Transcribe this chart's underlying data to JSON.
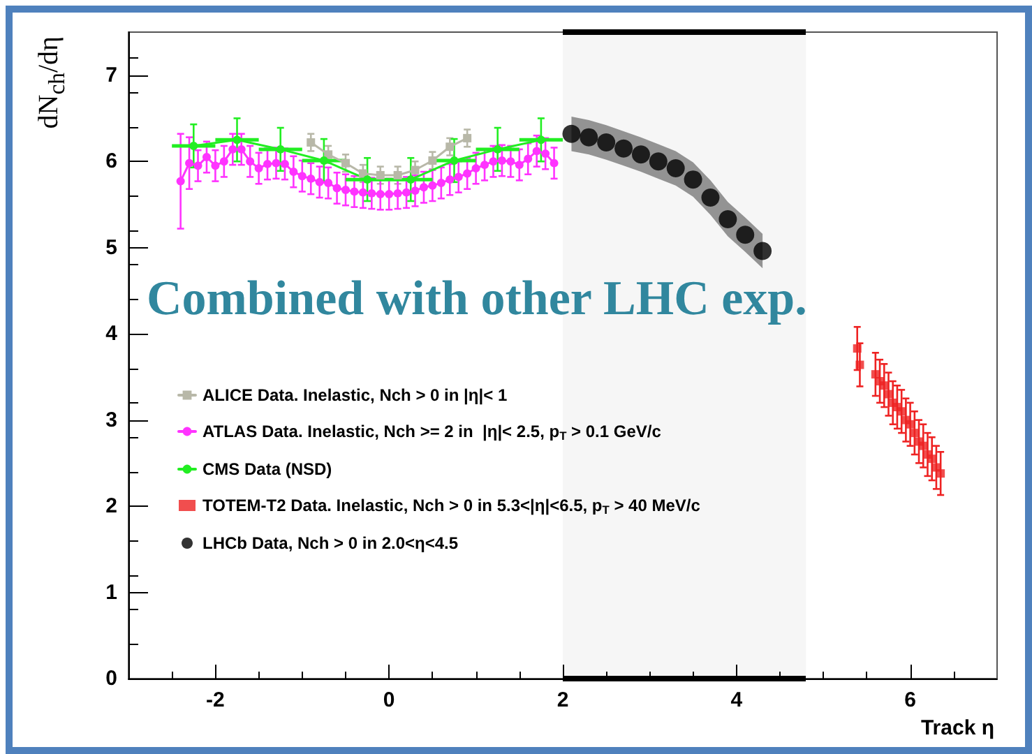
{
  "chart_data": {
    "type": "scatter",
    "xlabel": "Track η",
    "ylabel": "dN$_{ch}$/dη",
    "annotations": [
      "Combined with other LHC exp."
    ],
    "xlim": [
      -3,
      7
    ],
    "xticks": [
      -2,
      0,
      2,
      4,
      6
    ],
    "ylim": [
      0,
      7.5
    ],
    "yticks": [
      0,
      1,
      2,
      3,
      4,
      5,
      6,
      7
    ],
    "grid": false,
    "legend": "left",
    "bands": [
      {
        "axis": "x",
        "from": 2,
        "to": 4.8,
        "color": "#000000"
      }
    ],
    "series": [
      {
        "name": "ALICE Data. Inelastic, Nch > 0 in |η|< 1",
        "type": "line",
        "color": "#b8b8a8",
        "marker": "square",
        "x": [
          -0.9,
          -0.7,
          -0.5,
          -0.3,
          -0.1,
          0.1,
          0.3,
          0.5,
          0.7,
          0.9
        ],
        "values": [
          6.22,
          6.08,
          5.98,
          5.86,
          5.84,
          5.84,
          5.9,
          6.01,
          6.17,
          6.27
        ],
        "errors": [
          0.1,
          0.1,
          0.1,
          0.1,
          0.1,
          0.1,
          0.1,
          0.1,
          0.1,
          0.1
        ]
      },
      {
        "name": "ATLAS Data. Inelastic, Nch >= 2 in  |η|< 2.5, p$_{T}$ > 0.1 GeV/c",
        "type": "line",
        "color": "#ff33ff",
        "marker": "circle",
        "x": [
          -2.4,
          -2.3,
          -2.2,
          -2.1,
          -2.0,
          -1.9,
          -1.8,
          -1.7,
          -1.6,
          -1.5,
          -1.4,
          -1.3,
          -1.2,
          -1.1,
          -1.0,
          -0.9,
          -0.8,
          -0.7,
          -0.6,
          -0.5,
          -0.4,
          -0.3,
          -0.2,
          -0.1,
          0.0,
          0.1,
          0.2,
          0.3,
          0.4,
          0.5,
          0.6,
          0.7,
          0.8,
          0.9,
          1.0,
          1.1,
          1.2,
          1.3,
          1.4,
          1.5,
          1.6,
          1.7,
          1.8,
          1.9
        ],
        "values": [
          5.77,
          5.98,
          5.95,
          6.05,
          5.95,
          6.0,
          6.14,
          6.14,
          6.0,
          5.92,
          5.97,
          5.98,
          5.97,
          5.88,
          5.83,
          5.8,
          5.76,
          5.75,
          5.69,
          5.67,
          5.65,
          5.64,
          5.63,
          5.62,
          5.62,
          5.63,
          5.64,
          5.66,
          5.7,
          5.72,
          5.75,
          5.79,
          5.82,
          5.86,
          5.92,
          5.96,
          6.0,
          6.01,
          6.0,
          5.96,
          6.03,
          6.12,
          6.09,
          5.98
        ],
        "errors": [
          0.55,
          0.3,
          0.18,
          0.18,
          0.18,
          0.18,
          0.18,
          0.18,
          0.18,
          0.18,
          0.18,
          0.18,
          0.18,
          0.18,
          0.18,
          0.18,
          0.18,
          0.18,
          0.18,
          0.18,
          0.18,
          0.18,
          0.18,
          0.18,
          0.18,
          0.18,
          0.18,
          0.18,
          0.18,
          0.18,
          0.18,
          0.18,
          0.18,
          0.18,
          0.18,
          0.18,
          0.18,
          0.18,
          0.18,
          0.18,
          0.18,
          0.18,
          0.18,
          0.18
        ]
      },
      {
        "name": "CMS Data (NSD)",
        "type": "line",
        "color": "#22ee22",
        "marker": "circle",
        "x": [
          -2.25,
          -1.75,
          -1.25,
          -0.75,
          -0.25,
          0.25,
          0.75,
          1.25,
          1.75
        ],
        "values": [
          6.18,
          6.25,
          6.14,
          6.01,
          5.79,
          5.79,
          6.01,
          6.14,
          6.25
        ],
        "errors": [
          0.25,
          0.25,
          0.25,
          0.25,
          0.25,
          0.25,
          0.25,
          0.25,
          0.25
        ],
        "xerrors": [
          0.25,
          0.25,
          0.25,
          0.25,
          0.25,
          0.25,
          0.25,
          0.25,
          0.25
        ]
      },
      {
        "name": "TOTEM-T2 Data. Inelastic, Nch > 0 in 5.3<|η|<6.5, p$_{T}$ > 40 MeV/c",
        "type": "scatter",
        "color": "#ee2222",
        "marker": "square",
        "x": [
          5.39,
          5.42,
          5.6,
          5.65,
          5.7,
          5.75,
          5.8,
          5.85,
          5.9,
          5.95,
          6.0,
          6.05,
          6.1,
          6.15,
          6.2,
          6.25,
          6.3,
          6.35
        ],
        "values": [
          3.83,
          3.64,
          3.53,
          3.45,
          3.4,
          3.3,
          3.2,
          3.15,
          3.1,
          3.0,
          2.95,
          2.85,
          2.75,
          2.7,
          2.6,
          2.55,
          2.45,
          2.38
        ],
        "errors": [
          0.25,
          0.25,
          0.25,
          0.25,
          0.25,
          0.25,
          0.25,
          0.25,
          0.25,
          0.25,
          0.25,
          0.25,
          0.25,
          0.25,
          0.25,
          0.25,
          0.25,
          0.25
        ]
      },
      {
        "name": "LHCb Data, Nch > 0 in 2.0<η<4.5",
        "type": "scatter",
        "color": "#000000",
        "marker": "circle",
        "x": [
          2.1,
          2.3,
          2.5,
          2.7,
          2.9,
          3.1,
          3.3,
          3.5,
          3.7,
          3.9,
          4.1,
          4.3
        ],
        "values": [
          6.32,
          6.28,
          6.22,
          6.15,
          6.08,
          6.0,
          5.92,
          5.79,
          5.58,
          5.33,
          5.15,
          4.96
        ],
        "lower": [
          6.12,
          6.08,
          6.02,
          5.95,
          5.88,
          5.8,
          5.72,
          5.59,
          5.38,
          5.13,
          4.95,
          4.76
        ],
        "upper": [
          6.52,
          6.48,
          6.42,
          6.35,
          6.28,
          6.2,
          6.12,
          5.99,
          5.78,
          5.53,
          5.35,
          5.16
        ]
      }
    ]
  }
}
